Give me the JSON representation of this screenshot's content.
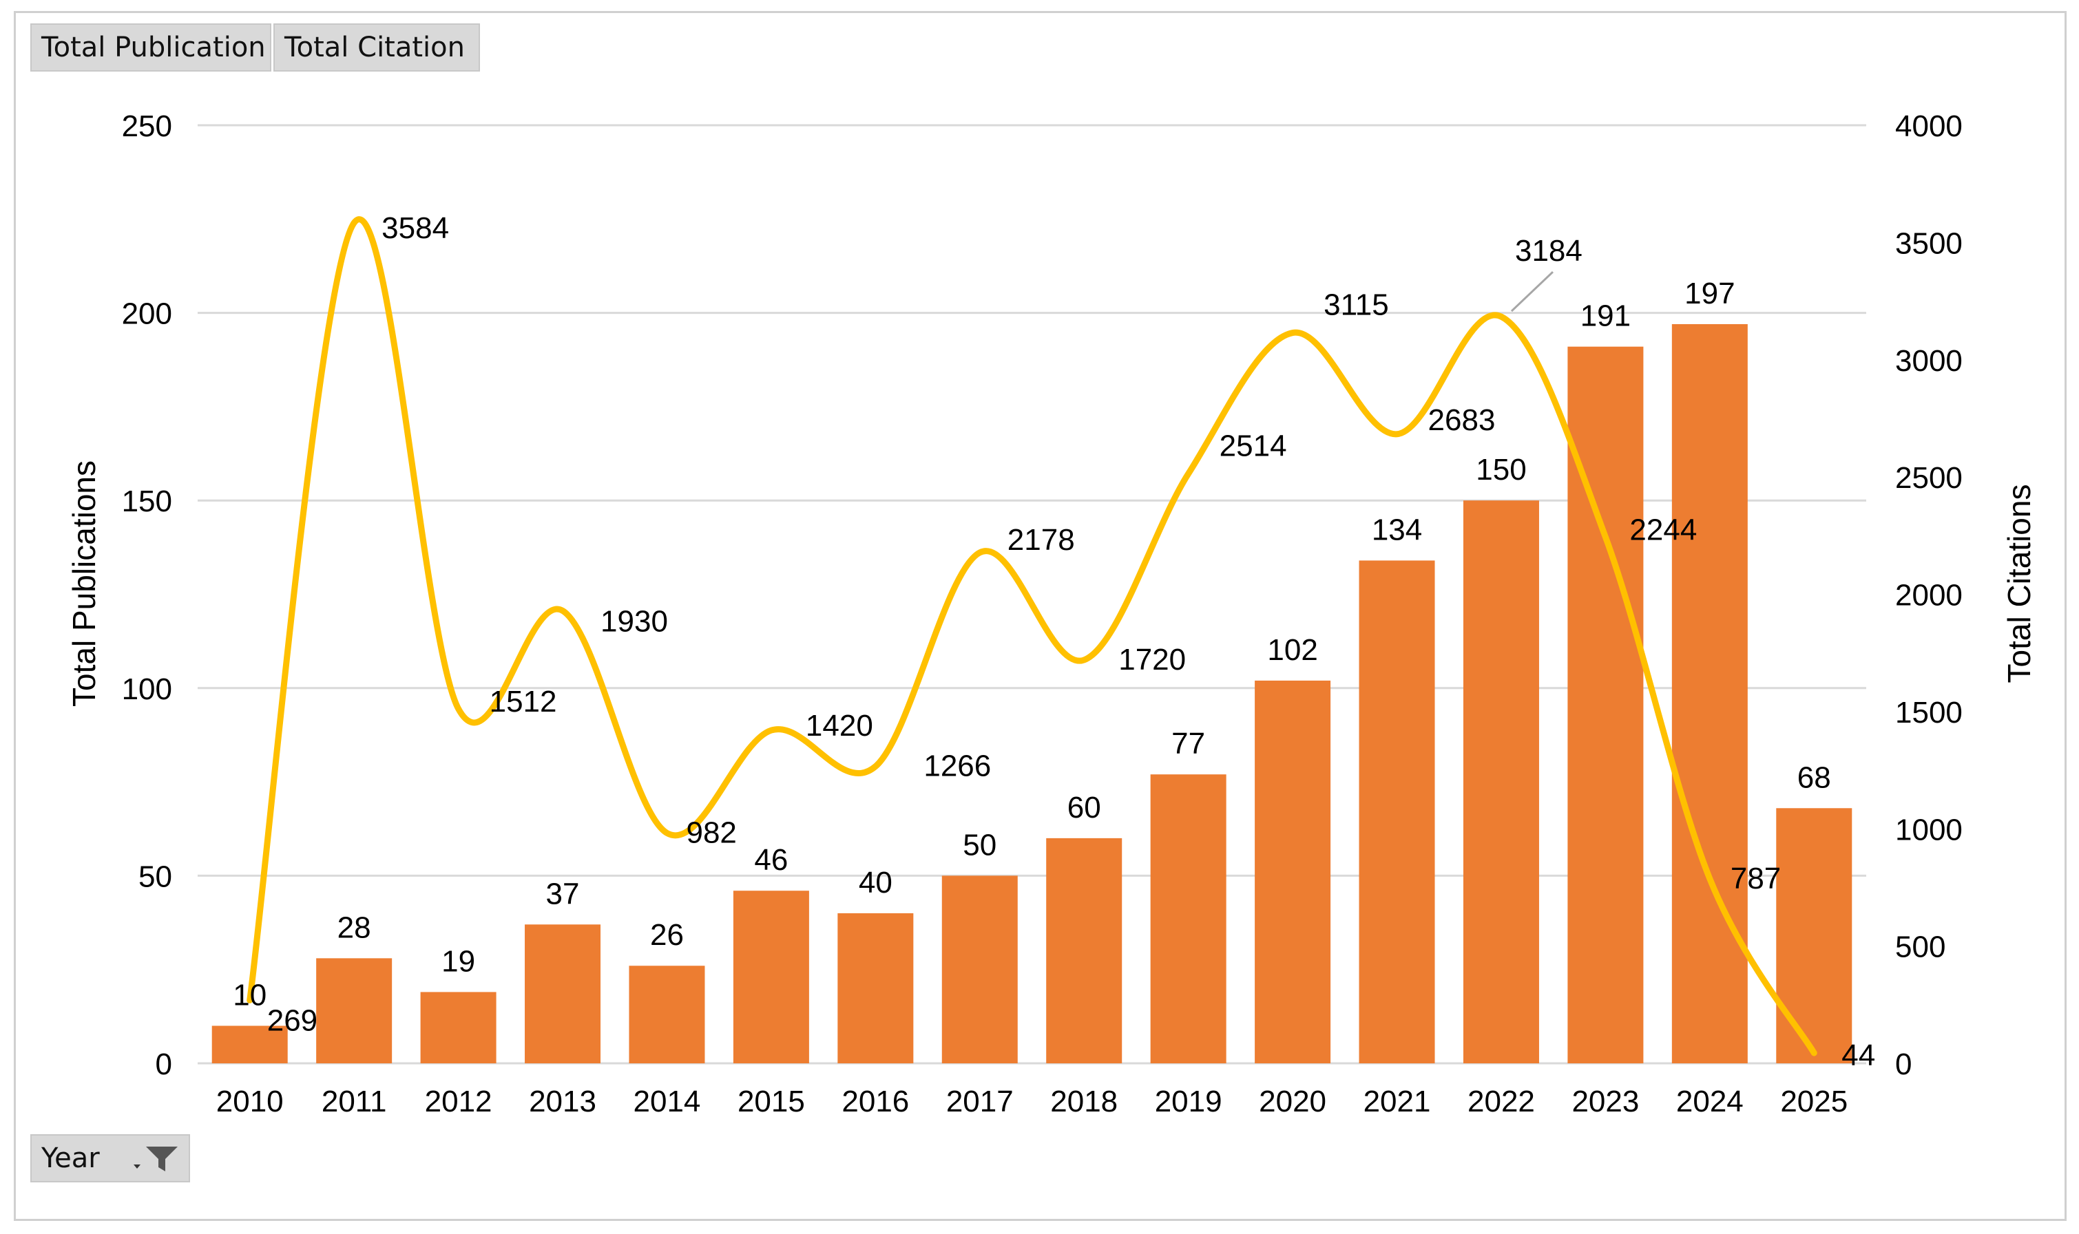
{
  "pivot_buttons": {
    "values": [
      "Total Publication",
      "Total Citation"
    ],
    "axis_field": "Year"
  },
  "chart_data": {
    "type": "bar+line",
    "categories": [
      "2010",
      "2011",
      "2012",
      "2013",
      "2014",
      "2015",
      "2016",
      "2017",
      "2018",
      "2019",
      "2020",
      "2021",
      "2022",
      "2023",
      "2024",
      "2025"
    ],
    "series": [
      {
        "name": "Total Publication",
        "type": "bar",
        "axis": "left",
        "color": "#ED7D31",
        "values": [
          10,
          28,
          19,
          37,
          26,
          46,
          40,
          50,
          60,
          77,
          102,
          134,
          150,
          191,
          197,
          68
        ]
      },
      {
        "name": "Total Citation",
        "type": "line",
        "axis": "right",
        "color": "#FFC000",
        "values": [
          269,
          3584,
          1512,
          1930,
          982,
          1420,
          1266,
          2178,
          1720,
          2514,
          3115,
          2683,
          3184,
          2244,
          787,
          44
        ]
      }
    ],
    "ylabel": "Total Publications",
    "y2label": "Total Citations",
    "ylim": [
      0,
      250
    ],
    "y2lim": [
      0,
      4000
    ],
    "yticks": [
      0,
      50,
      100,
      150,
      200,
      250
    ],
    "y2ticks": [
      0,
      500,
      1000,
      1500,
      2000,
      2500,
      3000,
      3500,
      4000
    ],
    "grid": true,
    "gridline_color": "#d9d9d9"
  }
}
